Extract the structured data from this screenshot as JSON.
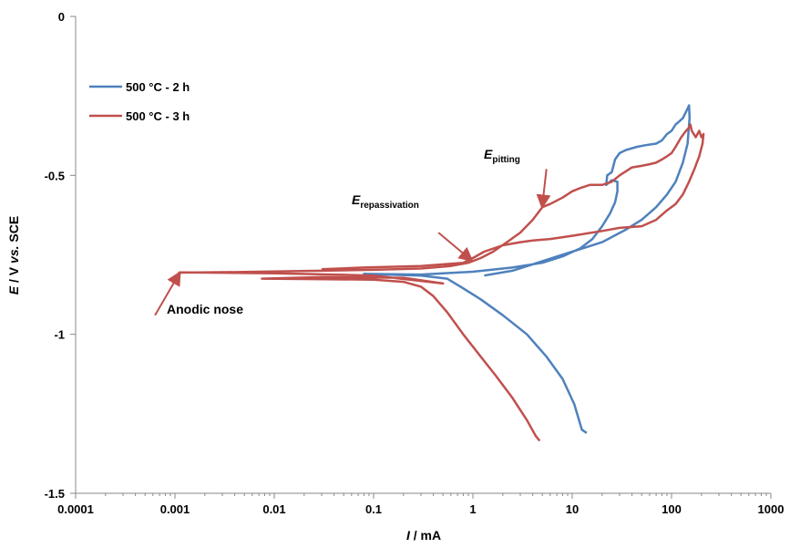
{
  "chart_data": {
    "type": "line",
    "xscale": "log",
    "xlabel_italic": "I",
    "xlabel_rest": " / mA",
    "ylabel_parts": [
      "E",
      " / V ",
      "vs.",
      " SCE"
    ],
    "xlim": [
      0.0001,
      1000
    ],
    "ylim": [
      -1.5,
      0
    ],
    "xticks": [
      0.0001,
      0.001,
      0.01,
      0.1,
      1,
      10,
      100,
      1000
    ],
    "xtick_labels": [
      "0.0001",
      "0.001",
      "0.01",
      "0.1",
      "1",
      "10",
      "100",
      "1000"
    ],
    "yticks": [
      0,
      -0.5,
      -1,
      -1.5
    ],
    "ytick_labels": [
      "0",
      "-0.5",
      "-1",
      "-1.5"
    ],
    "grid": false,
    "legend_position": "top-left",
    "series": [
      {
        "name": "500 °C - 2 h",
        "color": "#4f81bd",
        "points": [
          [
            14,
            -1.31
          ],
          [
            12.5,
            -1.3
          ],
          [
            10.5,
            -1.22
          ],
          [
            8,
            -1.14
          ],
          [
            5.5,
            -1.07
          ],
          [
            3.5,
            -1.0
          ],
          [
            2,
            -0.94
          ],
          [
            1.2,
            -0.89
          ],
          [
            0.75,
            -0.85
          ],
          [
            0.55,
            -0.825
          ],
          [
            0.3,
            -0.815
          ],
          [
            0.08,
            -0.81
          ],
          [
            0.08,
            -0.81
          ],
          [
            0.3,
            -0.812
          ],
          [
            1,
            -0.803
          ],
          [
            2.5,
            -0.79
          ],
          [
            5,
            -0.775
          ],
          [
            8,
            -0.755
          ],
          [
            12,
            -0.73
          ],
          [
            16,
            -0.7
          ],
          [
            20,
            -0.66
          ],
          [
            24,
            -0.62
          ],
          [
            27,
            -0.585
          ],
          [
            28.5,
            -0.55
          ],
          [
            28.5,
            -0.52
          ],
          [
            25,
            -0.515
          ],
          [
            22,
            -0.53
          ],
          [
            22.5,
            -0.5
          ],
          [
            25,
            -0.49
          ],
          [
            27,
            -0.45
          ],
          [
            30,
            -0.43
          ],
          [
            35,
            -0.42
          ],
          [
            45,
            -0.41
          ],
          [
            55,
            -0.405
          ],
          [
            70,
            -0.4
          ],
          [
            80,
            -0.39
          ],
          [
            90,
            -0.37
          ],
          [
            100,
            -0.36
          ],
          [
            110,
            -0.34
          ],
          [
            120,
            -0.33
          ],
          [
            130,
            -0.32
          ],
          [
            140,
            -0.3
          ],
          [
            150,
            -0.28
          ],
          [
            152,
            -0.32
          ],
          [
            145,
            -0.4
          ],
          [
            130,
            -0.46
          ],
          [
            110,
            -0.52
          ],
          [
            90,
            -0.56
          ],
          [
            70,
            -0.6
          ],
          [
            50,
            -0.64
          ],
          [
            35,
            -0.67
          ],
          [
            20,
            -0.71
          ],
          [
            10,
            -0.74
          ],
          [
            5,
            -0.77
          ],
          [
            2.5,
            -0.8
          ],
          [
            1.3,
            -0.815
          ]
        ]
      },
      {
        "name": "500 °C - 3 h",
        "color": "#c0504d",
        "points": [
          [
            4.7,
            -1.335
          ],
          [
            4.3,
            -1.32
          ],
          [
            3.5,
            -1.27
          ],
          [
            2.5,
            -1.2
          ],
          [
            1.7,
            -1.13
          ],
          [
            1.2,
            -1.07
          ],
          [
            0.8,
            -1.0
          ],
          [
            0.55,
            -0.93
          ],
          [
            0.4,
            -0.88
          ],
          [
            0.3,
            -0.85
          ],
          [
            0.2,
            -0.835
          ],
          [
            0.1,
            -0.828
          ],
          [
            0.02,
            -0.826
          ],
          [
            0.0075,
            -0.825
          ],
          [
            0.03,
            -0.82
          ],
          [
            0.2,
            -0.822
          ],
          [
            0.5,
            -0.84
          ],
          [
            0.5,
            -0.84
          ],
          [
            0.1,
            -0.815
          ],
          [
            0.01,
            -0.808
          ],
          [
            0.0012,
            -0.805
          ],
          [
            0.0011,
            -0.806
          ],
          [
            0.005,
            -0.804
          ],
          [
            0.03,
            -0.8
          ],
          [
            0.1,
            -0.797
          ],
          [
            0.3,
            -0.793
          ],
          [
            0.6,
            -0.785
          ],
          [
            0.9,
            -0.775
          ],
          [
            1.2,
            -0.76
          ],
          [
            1.6,
            -0.74
          ],
          [
            2.2,
            -0.71
          ],
          [
            3,
            -0.68
          ],
          [
            4,
            -0.64
          ],
          [
            5,
            -0.6
          ],
          [
            6,
            -0.59
          ],
          [
            8,
            -0.57
          ],
          [
            10,
            -0.55
          ],
          [
            12,
            -0.54
          ],
          [
            15,
            -0.53
          ],
          [
            20,
            -0.53
          ],
          [
            25,
            -0.52
          ],
          [
            30,
            -0.5
          ],
          [
            40,
            -0.475
          ],
          [
            50,
            -0.47
          ],
          [
            60,
            -0.465
          ],
          [
            70,
            -0.46
          ],
          [
            80,
            -0.45
          ],
          [
            90,
            -0.44
          ],
          [
            100,
            -0.43
          ],
          [
            110,
            -0.41
          ],
          [
            125,
            -0.38
          ],
          [
            140,
            -0.36
          ],
          [
            150,
            -0.35
          ],
          [
            155,
            -0.34
          ],
          [
            160,
            -0.36
          ],
          [
            175,
            -0.38
          ],
          [
            190,
            -0.36
          ],
          [
            200,
            -0.38
          ],
          [
            210,
            -0.37
          ],
          [
            205,
            -0.4
          ],
          [
            190,
            -0.44
          ],
          [
            170,
            -0.48
          ],
          [
            150,
            -0.52
          ],
          [
            130,
            -0.56
          ],
          [
            110,
            -0.59
          ],
          [
            90,
            -0.61
          ],
          [
            70,
            -0.64
          ],
          [
            50,
            -0.66
          ],
          [
            30,
            -0.665
          ],
          [
            20,
            -0.675
          ],
          [
            10,
            -0.69
          ],
          [
            6,
            -0.7
          ],
          [
            4,
            -0.705
          ],
          [
            3,
            -0.71
          ],
          [
            2,
            -0.72
          ],
          [
            1.3,
            -0.74
          ],
          [
            1,
            -0.76
          ],
          [
            0.8,
            -0.775
          ],
          [
            0.3,
            -0.785
          ],
          [
            0.08,
            -0.79
          ],
          [
            0.03,
            -0.795
          ]
        ]
      }
    ],
    "annotations": [
      {
        "id": "pitting",
        "main": "E",
        "sub": "pitting",
        "arrow_from": [
          5.5,
          -0.48
        ],
        "arrow_to": [
          5,
          -0.595
        ]
      },
      {
        "id": "repassivation",
        "main": "E",
        "sub": "repassivation",
        "arrow_from": [
          0.45,
          -0.68
        ],
        "arrow_to": [
          0.95,
          -0.765
        ]
      },
      {
        "id": "anodic-nose",
        "main": "Anodic nose",
        "sub": "",
        "arrow_from": [
          0.00063,
          -0.94
        ],
        "arrow_to": [
          0.0011,
          -0.81
        ]
      }
    ]
  }
}
